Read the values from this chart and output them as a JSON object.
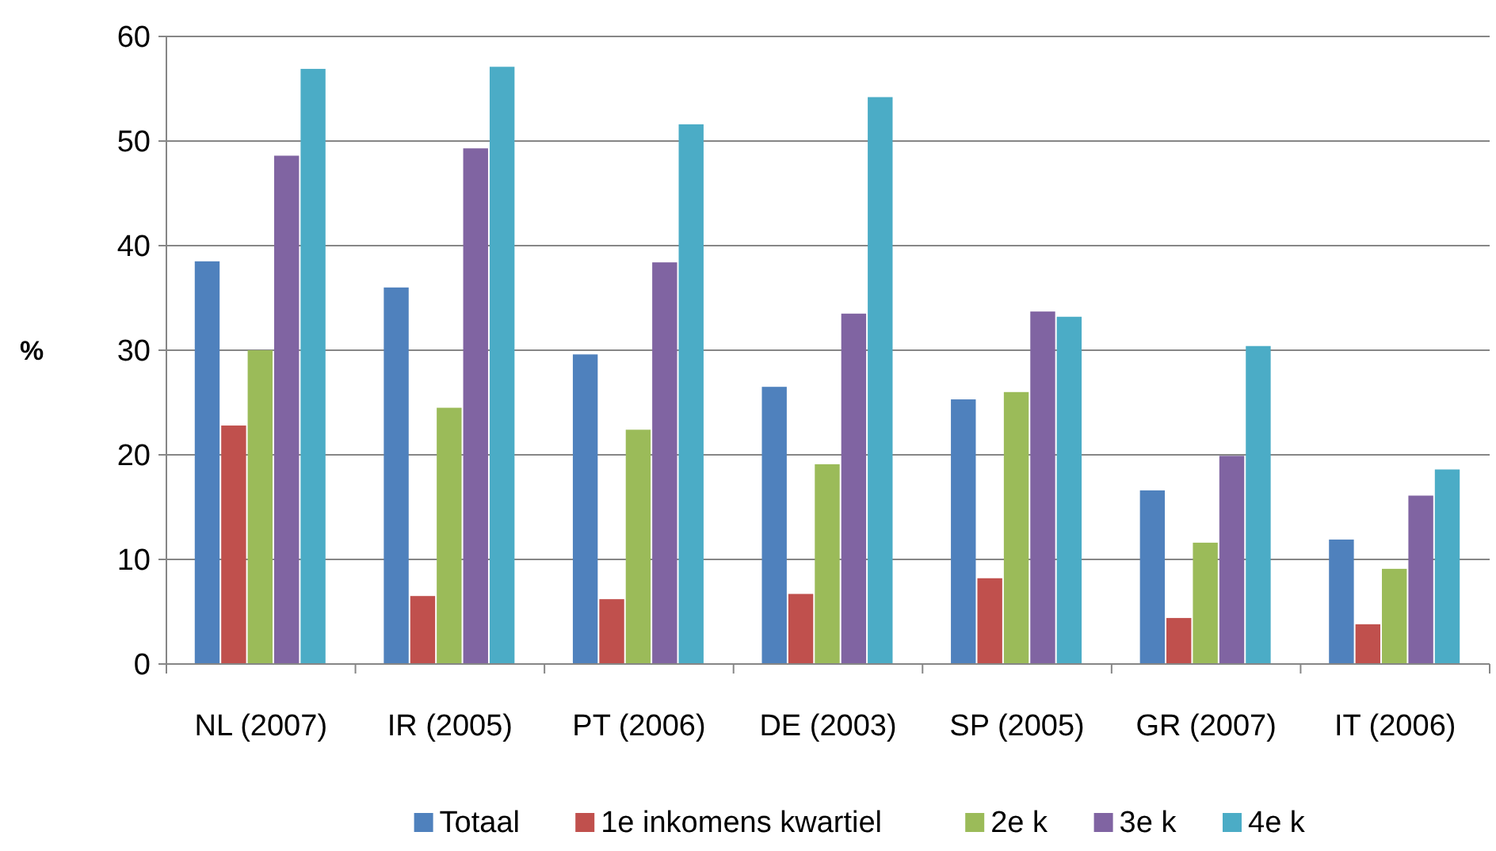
{
  "chart_data": {
    "type": "bar",
    "ylabel": "%",
    "categories": [
      "NL (2007)",
      "IR (2005)",
      "PT (2006)",
      "DE (2003)",
      "SP (2005)",
      "GR (2007)",
      "IT (2006)"
    ],
    "series": [
      {
        "name": "Totaal",
        "color": "#4f81bd",
        "values": [
          38.5,
          36,
          29.6,
          26.5,
          25.3,
          16.6,
          11.9
        ]
      },
      {
        "name": "1e inkomens kwartiel",
        "color": "#c0504d",
        "values": [
          22.8,
          6.5,
          6.2,
          6.7,
          8.2,
          4.4,
          3.8
        ]
      },
      {
        "name": "2e k",
        "color": "#9bbb59",
        "values": [
          30,
          24.5,
          22.4,
          19.1,
          26,
          11.6,
          9.1
        ]
      },
      {
        "name": "3e k",
        "color": "#8064a2",
        "values": [
          48.6,
          49.3,
          38.4,
          33.5,
          33.7,
          19.9,
          16.1
        ]
      },
      {
        "name": "4e k",
        "color": "#4bacc6",
        "values": [
          56.9,
          57.1,
          51.6,
          54.2,
          33.2,
          30.4,
          18.6
        ]
      }
    ],
    "ylim": [
      0,
      60
    ],
    "yticks": [
      0,
      10,
      20,
      30,
      40,
      50,
      60
    ],
    "grid": "y",
    "legend": "bottom"
  }
}
